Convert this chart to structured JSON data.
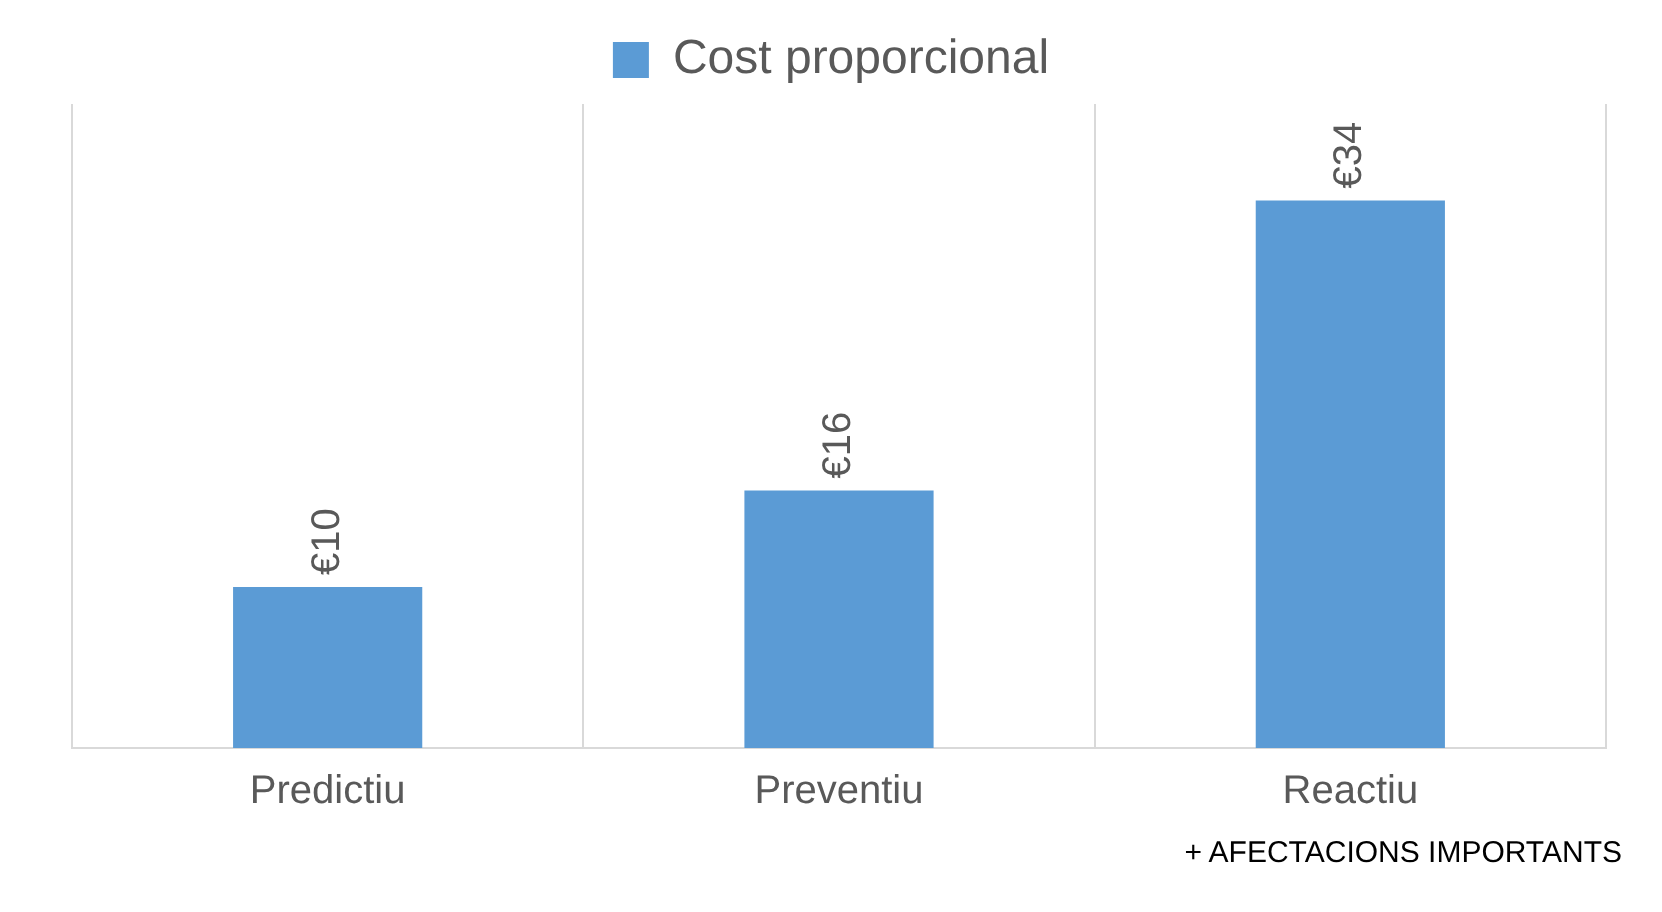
{
  "chart_data": {
    "type": "bar",
    "categories": [
      "Predictiu",
      "Preventiu",
      "Reactiu"
    ],
    "series": [
      {
        "name": "Cost proporcional",
        "color": "#5b9bd5",
        "values": [
          10,
          16,
          34
        ],
        "value_labels": [
          "€10",
          "€16",
          "€34"
        ]
      }
    ],
    "relative": false,
    "grid": "x",
    "legend": "top",
    "annotations": [
      "+ AFECTACIONS IMPORTANTS"
    ]
  }
}
